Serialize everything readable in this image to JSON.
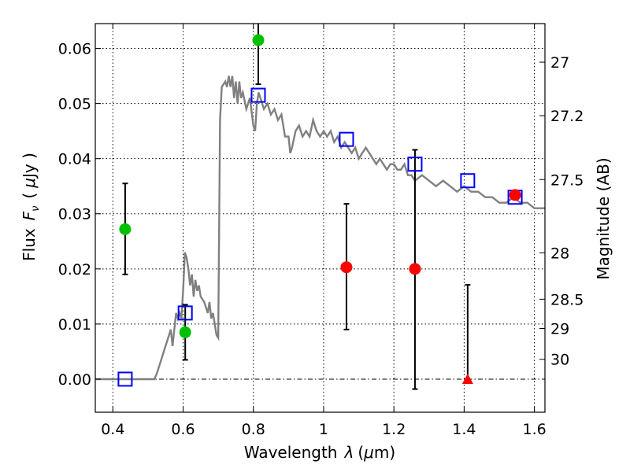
{
  "chart_data": {
    "type": "scatter",
    "xlabel": "Wavelength",
    "xlabel_symbol": "λ",
    "xlabel_unit_open": "(",
    "xlabel_unit_mu": "μ",
    "xlabel_unit_close": "m)",
    "ylabel": "Flux",
    "ylabel_symbol": "F",
    "ylabel_subscript": "ν",
    "ylabel_unit_open": "(",
    "ylabel_unit_mu": "μ",
    "ylabel_unit_close": "Jy )",
    "y2label": "Magnitude (AB)",
    "xlim": [
      0.35,
      1.63
    ],
    "ylim": [
      -0.006,
      0.0645
    ],
    "grid": true,
    "legend": "none",
    "x_ticks": [
      {
        "value": 0.4,
        "label": "0.4"
      },
      {
        "value": 0.6,
        "label": "0.6"
      },
      {
        "value": 0.8,
        "label": "0.8"
      },
      {
        "value": 1.0,
        "label": "1"
      },
      {
        "value": 1.2,
        "label": "1.2"
      },
      {
        "value": 1.4,
        "label": "1.4"
      },
      {
        "value": 1.6,
        "label": "1.6"
      }
    ],
    "y_ticks": [
      {
        "value": 0.0,
        "label": "0.00"
      },
      {
        "value": 0.01,
        "label": "0.01"
      },
      {
        "value": 0.02,
        "label": "0.02"
      },
      {
        "value": 0.03,
        "label": "0.03"
      },
      {
        "value": 0.04,
        "label": "0.04"
      },
      {
        "value": 0.05,
        "label": "0.05"
      },
      {
        "value": 0.06,
        "label": "0.06"
      }
    ],
    "y2_ticks": [
      {
        "flux": 0.0575,
        "label": "27"
      },
      {
        "flux": 0.0478,
        "label": "27.2"
      },
      {
        "flux": 0.0362,
        "label": "27.5"
      },
      {
        "flux": 0.0229,
        "label": "28"
      },
      {
        "flux": 0.0145,
        "label": "28.5"
      },
      {
        "flux": 0.0092,
        "label": "29"
      },
      {
        "flux": 0.0036,
        "label": "30"
      }
    ],
    "model_spectrum": {
      "color": "#808080",
      "x": [
        0.35,
        0.518,
        0.525,
        0.54,
        0.55,
        0.56,
        0.565,
        0.57,
        0.58,
        0.585,
        0.59,
        0.595,
        0.6,
        0.605,
        0.61,
        0.615,
        0.62,
        0.625,
        0.63,
        0.635,
        0.64,
        0.645,
        0.65,
        0.66,
        0.67,
        0.675,
        0.68,
        0.685,
        0.69,
        0.695,
        0.7,
        0.705,
        0.71,
        0.72,
        0.725,
        0.73,
        0.735,
        0.74,
        0.745,
        0.75,
        0.755,
        0.76,
        0.765,
        0.77,
        0.78,
        0.79,
        0.8,
        0.805,
        0.81,
        0.815,
        0.82,
        0.825,
        0.83,
        0.84,
        0.85,
        0.86,
        0.87,
        0.88,
        0.89,
        0.9,
        0.905,
        0.91,
        0.92,
        0.93,
        0.94,
        0.95,
        0.96,
        0.97,
        0.98,
        0.99,
        1.0,
        1.01,
        1.02,
        1.03,
        1.04,
        1.05,
        1.06,
        1.07,
        1.08,
        1.09,
        1.1,
        1.11,
        1.12,
        1.13,
        1.14,
        1.15,
        1.16,
        1.17,
        1.18,
        1.19,
        1.2,
        1.21,
        1.22,
        1.23,
        1.24,
        1.25,
        1.26,
        1.28,
        1.3,
        1.32,
        1.34,
        1.36,
        1.38,
        1.4,
        1.42,
        1.44,
        1.46,
        1.48,
        1.5,
        1.52,
        1.54,
        1.56,
        1.58,
        1.6,
        1.63
      ],
      "y": [
        0.0,
        0.0,
        0.001,
        0.004,
        0.006,
        0.008,
        0.009,
        0.006,
        0.012,
        0.011,
        0.012,
        0.011,
        0.016,
        0.023,
        0.022,
        0.02,
        0.017,
        0.019,
        0.015,
        0.018,
        0.016,
        0.017,
        0.015,
        0.014,
        0.012,
        0.014,
        0.011,
        0.012,
        0.01,
        0.008,
        0.0075,
        0.047,
        0.053,
        0.054,
        0.053,
        0.055,
        0.053,
        0.055,
        0.051,
        0.054,
        0.05,
        0.054,
        0.051,
        0.052,
        0.049,
        0.051,
        0.046,
        0.045,
        0.05,
        0.052,
        0.051,
        0.05,
        0.049,
        0.05,
        0.048,
        0.049,
        0.047,
        0.048,
        0.044,
        0.044,
        0.041,
        0.042,
        0.045,
        0.046,
        0.044,
        0.045,
        0.044,
        0.047,
        0.045,
        0.044,
        0.045,
        0.044,
        0.045,
        0.043,
        0.044,
        0.042,
        0.043,
        0.042,
        0.041,
        0.042,
        0.04,
        0.041,
        0.042,
        0.041,
        0.04,
        0.039,
        0.04,
        0.039,
        0.038,
        0.039,
        0.039,
        0.038,
        0.038,
        0.039,
        0.037,
        0.037,
        0.036,
        0.037,
        0.036,
        0.035,
        0.036,
        0.035,
        0.034,
        0.035,
        0.034,
        0.034,
        0.033,
        0.033,
        0.032,
        0.032,
        0.033,
        0.032,
        0.032,
        0.031,
        0.031
      ]
    },
    "model_photometry": {
      "color": "#0000ff",
      "marker": "open-square",
      "x": [
        0.435,
        0.606,
        0.814,
        1.065,
        1.26,
        1.41,
        1.545
      ],
      "y": [
        0.0,
        0.012,
        0.0515,
        0.0435,
        0.039,
        0.036,
        0.033
      ]
    },
    "detections": {
      "color": "#00c000",
      "marker": "circle",
      "x": [
        0.435,
        0.606,
        0.814
      ],
      "y": [
        0.0272,
        0.0085,
        0.0615
      ],
      "yerr_low": [
        0.019,
        0.0035,
        0.0535
      ],
      "yerr_high": [
        0.0355,
        0.0135,
        0.0648
      ]
    },
    "low_sn_points": {
      "color": "#ff0000",
      "marker": "circle",
      "x": [
        1.065,
        1.26,
        1.545
      ],
      "y": [
        0.0203,
        0.02,
        0.0334
      ],
      "yerr_low": [
        0.009,
        -0.0018,
        null
      ],
      "yerr_high": [
        0.0318,
        0.0416,
        null
      ]
    },
    "upper_limits": {
      "color": "#ff0000",
      "marker": "triangle",
      "x": [
        1.41
      ],
      "y": [
        0.0
      ],
      "yerr_low": [
        0.0
      ],
      "yerr_high": [
        0.0171
      ]
    }
  }
}
